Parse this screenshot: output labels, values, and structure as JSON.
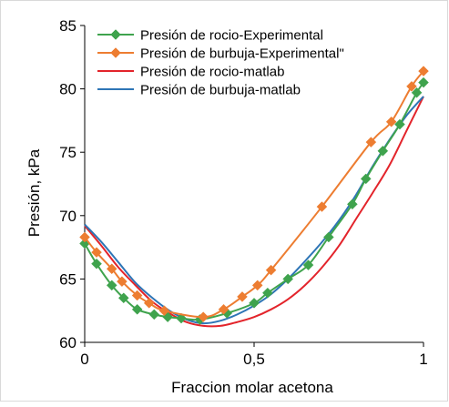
{
  "chart_data": {
    "type": "line",
    "xlabel": "Fraccion molar acetona",
    "ylabel": "Presión, kPa",
    "xlim": [
      0,
      1
    ],
    "ylim": [
      60,
      85
    ],
    "x_ticks": [
      {
        "value": 0,
        "label": "0"
      },
      {
        "value": 0.5,
        "label": "0,5"
      },
      {
        "value": 1,
        "label": "1"
      }
    ],
    "y_ticks": [
      {
        "value": 60,
        "label": "60"
      },
      {
        "value": 65,
        "label": "65"
      },
      {
        "value": 70,
        "label": "70"
      },
      {
        "value": 75,
        "label": "75"
      },
      {
        "value": 80,
        "label": "80"
      },
      {
        "value": 85,
        "label": "85"
      }
    ],
    "grid": false,
    "legend_position": "top-left-inside",
    "series": [
      {
        "name": "Presión de rocio-Experimental",
        "color": "#3fa34d",
        "marker": "diamond",
        "x": [
          0.0,
          0.035,
          0.08,
          0.115,
          0.155,
          0.205,
          0.245,
          0.285,
          0.34,
          0.42,
          0.5,
          0.54,
          0.6,
          0.66,
          0.72,
          0.79,
          0.83,
          0.88,
          0.93,
          0.98,
          1.0
        ],
        "y": [
          67.8,
          66.2,
          64.5,
          63.5,
          62.6,
          62.2,
          62.0,
          61.9,
          61.8,
          62.3,
          63.1,
          63.9,
          65.0,
          66.1,
          68.3,
          70.9,
          72.9,
          75.1,
          77.2,
          79.7,
          80.5
        ]
      },
      {
        "name": "Presión de burbuja-Experimental\"",
        "color": "#ed7d31",
        "marker": "diamond",
        "x": [
          0.0,
          0.035,
          0.08,
          0.11,
          0.155,
          0.19,
          0.235,
          0.35,
          0.41,
          0.465,
          0.51,
          0.55,
          0.7,
          0.845,
          0.905,
          0.965,
          1.0
        ],
        "y": [
          68.3,
          67.1,
          65.8,
          64.8,
          63.7,
          63.1,
          62.5,
          62.0,
          62.6,
          63.6,
          64.5,
          65.7,
          70.7,
          75.8,
          77.4,
          80.2,
          81.4
        ]
      },
      {
        "name": "Presión de rocio-matlab",
        "color": "#e3242b",
        "marker": "none",
        "x": [
          0.0,
          0.05,
          0.1,
          0.15,
          0.2,
          0.25,
          0.3,
          0.35,
          0.4,
          0.45,
          0.5,
          0.55,
          0.6,
          0.65,
          0.7,
          0.75,
          0.8,
          0.85,
          0.9,
          0.95,
          1.0
        ],
        "y": [
          69.2,
          67.6,
          65.9,
          64.5,
          63.2,
          62.3,
          61.6,
          61.3,
          61.3,
          61.6,
          62.0,
          62.6,
          63.4,
          64.5,
          65.9,
          67.6,
          69.7,
          71.8,
          74.0,
          76.7,
          79.4
        ]
      },
      {
        "name": "Presión de burbuja-matlab",
        "color": "#2e75b6",
        "marker": "none",
        "x": [
          0.0,
          0.05,
          0.1,
          0.15,
          0.2,
          0.25,
          0.3,
          0.35,
          0.4,
          0.45,
          0.5,
          0.55,
          0.6,
          0.65,
          0.7,
          0.75,
          0.8,
          0.85,
          0.9,
          0.95,
          1.0
        ],
        "y": [
          69.3,
          67.9,
          66.3,
          64.7,
          63.5,
          62.5,
          61.8,
          61.5,
          61.7,
          62.2,
          62.9,
          63.8,
          65.0,
          66.4,
          67.9,
          69.6,
          71.6,
          73.9,
          76.0,
          77.9,
          79.4
        ]
      }
    ]
  }
}
